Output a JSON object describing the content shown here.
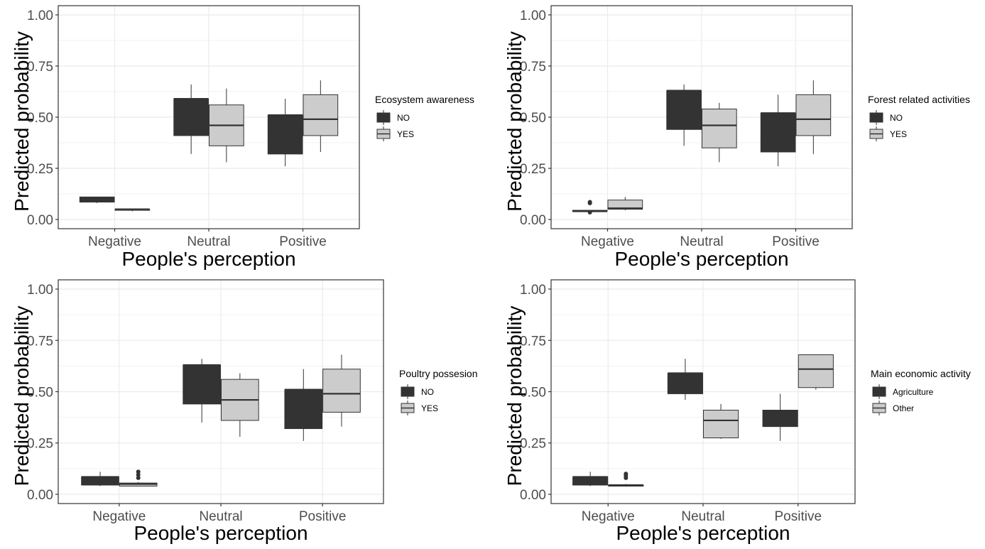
{
  "chart_data": [
    {
      "type": "boxplot",
      "xlabel": "People's perception",
      "ylabel": "Predicted probability",
      "ylim": [
        0,
        1.0
      ],
      "yticks": [
        "0.00",
        "0.25",
        "0.50",
        "0.75",
        "1.00"
      ],
      "categories": [
        "Negative",
        "Neutral",
        "Positive"
      ],
      "grid": true,
      "legend": {
        "title": "Ecosystem awareness",
        "placement": "right"
      },
      "series": [
        {
          "name": "NO",
          "color": "#333333",
          "boxes": [
            {
              "min": 0.08,
              "q1": 0.085,
              "median": 0.1,
              "q3": 0.11,
              "max": 0.11,
              "outliers": []
            },
            {
              "min": 0.32,
              "q1": 0.41,
              "median": 0.59,
              "q3": 0.59,
              "max": 0.66,
              "outliers": []
            },
            {
              "min": 0.26,
              "q1": 0.32,
              "median": 0.51,
              "q3": 0.51,
              "max": 0.59,
              "outliers": []
            }
          ]
        },
        {
          "name": "YES",
          "color": "#cccccc",
          "boxes": [
            {
              "min": 0.04,
              "q1": 0.045,
              "median": 0.05,
              "q3": 0.05,
              "max": 0.05,
              "outliers": []
            },
            {
              "min": 0.28,
              "q1": 0.36,
              "median": 0.46,
              "q3": 0.56,
              "max": 0.64,
              "outliers": []
            },
            {
              "min": 0.33,
              "q1": 0.41,
              "median": 0.49,
              "q3": 0.61,
              "max": 0.68,
              "outliers": []
            }
          ]
        }
      ]
    },
    {
      "type": "boxplot",
      "xlabel": "People's perception",
      "ylabel": "Predicted probability",
      "ylim": [
        0,
        1.0
      ],
      "yticks": [
        "0.00",
        "0.25",
        "0.50",
        "0.75",
        "1.00"
      ],
      "categories": [
        "Negative",
        "Neutral",
        "Positive"
      ],
      "grid": true,
      "legend": {
        "title": "Forest related activities",
        "placement": "right"
      },
      "series": [
        {
          "name": "NO",
          "color": "#333333",
          "boxes": [
            {
              "min": 0.04,
              "q1": 0.04,
              "median": 0.04,
              "q3": 0.045,
              "max": 0.045,
              "outliers": [
                0.035,
                0.08,
                0.085
              ]
            },
            {
              "min": 0.36,
              "q1": 0.44,
              "median": 0.63,
              "q3": 0.63,
              "max": 0.66,
              "outliers": []
            },
            {
              "min": 0.26,
              "q1": 0.33,
              "median": 0.52,
              "q3": 0.52,
              "max": 0.61,
              "outliers": []
            }
          ]
        },
        {
          "name": "YES",
          "color": "#cccccc",
          "boxes": [
            {
              "min": 0.045,
              "q1": 0.05,
              "median": 0.055,
              "q3": 0.095,
              "max": 0.11,
              "outliers": []
            },
            {
              "min": 0.28,
              "q1": 0.35,
              "median": 0.46,
              "q3": 0.54,
              "max": 0.57,
              "outliers": []
            },
            {
              "min": 0.32,
              "q1": 0.41,
              "median": 0.49,
              "q3": 0.61,
              "max": 0.68,
              "outliers": []
            }
          ]
        }
      ]
    },
    {
      "type": "boxplot",
      "xlabel": "People's perception",
      "ylabel": "Predicted probability",
      "ylim": [
        0,
        1.0
      ],
      "yticks": [
        "0.00",
        "0.25",
        "0.50",
        "0.75",
        "1.00"
      ],
      "categories": [
        "Negative",
        "Neutral",
        "Positive"
      ],
      "grid": true,
      "legend": {
        "title": "Poultry possesion",
        "placement": "right"
      },
      "series": [
        {
          "name": "NO",
          "color": "#333333",
          "boxes": [
            {
              "min": 0.04,
              "q1": 0.045,
              "median": 0.085,
              "q3": 0.085,
              "max": 0.11,
              "outliers": []
            },
            {
              "min": 0.35,
              "q1": 0.44,
              "median": 0.63,
              "q3": 0.63,
              "max": 0.66,
              "outliers": []
            },
            {
              "min": 0.26,
              "q1": 0.32,
              "median": 0.51,
              "q3": 0.51,
              "max": 0.61,
              "outliers": []
            }
          ]
        },
        {
          "name": "YES",
          "color": "#cccccc",
          "boxes": [
            {
              "min": 0.04,
              "q1": 0.04,
              "median": 0.05,
              "q3": 0.055,
              "max": 0.06,
              "outliers": [
                0.08,
                0.095,
                0.11
              ]
            },
            {
              "min": 0.28,
              "q1": 0.36,
              "median": 0.46,
              "q3": 0.56,
              "max": 0.59,
              "outliers": []
            },
            {
              "min": 0.33,
              "q1": 0.4,
              "median": 0.49,
              "q3": 0.61,
              "max": 0.68,
              "outliers": []
            }
          ]
        }
      ]
    },
    {
      "type": "boxplot",
      "xlabel": "People's perception",
      "ylabel": "Predicted probability",
      "ylim": [
        0,
        1.0
      ],
      "yticks": [
        "0.00",
        "0.25",
        "0.50",
        "0.75",
        "1.00"
      ],
      "categories": [
        "Negative",
        "Neutral",
        "Positive"
      ],
      "grid": true,
      "legend": {
        "title": "Main economic activity",
        "placement": "right"
      },
      "series": [
        {
          "name": "Agriculture",
          "color": "#333333",
          "boxes": [
            {
              "min": 0.04,
              "q1": 0.045,
              "median": 0.085,
              "q3": 0.085,
              "max": 0.11,
              "outliers": []
            },
            {
              "min": 0.46,
              "q1": 0.49,
              "median": 0.59,
              "q3": 0.59,
              "max": 0.66,
              "outliers": []
            },
            {
              "min": 0.26,
              "q1": 0.33,
              "median": 0.4,
              "q3": 0.41,
              "max": 0.49,
              "outliers": []
            }
          ]
        },
        {
          "name": "Other",
          "color": "#cccccc",
          "boxes": [
            {
              "min": 0.04,
              "q1": 0.04,
              "median": 0.045,
              "q3": 0.045,
              "max": 0.05,
              "outliers": [
                0.08,
                0.09,
                0.1
              ]
            },
            {
              "min": 0.27,
              "q1": 0.275,
              "median": 0.36,
              "q3": 0.41,
              "max": 0.44,
              "outliers": []
            },
            {
              "min": 0.51,
              "q1": 0.52,
              "median": 0.61,
              "q3": 0.68,
              "max": 0.68,
              "outliers": []
            }
          ]
        }
      ]
    }
  ]
}
